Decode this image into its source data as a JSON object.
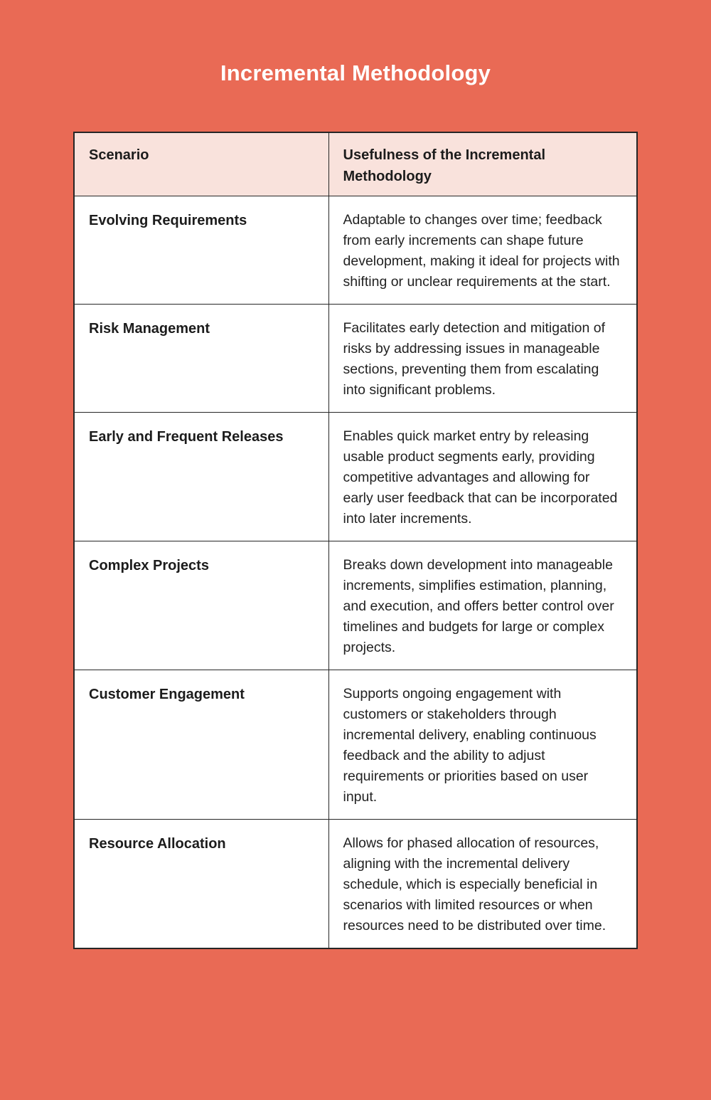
{
  "page": {
    "title": "Incremental Methodology",
    "background_color": "#e96a55",
    "header_bg_color": "#f9e2dc",
    "border_color": "#262626",
    "title_color": "#ffffff"
  },
  "table": {
    "columns": [
      "Scenario",
      "Usefulness of the Incremental Methodology"
    ],
    "rows": [
      {
        "scenario": "Evolving Requirements",
        "usefulness": "Adaptable to changes over time; feedback from early increments can shape future development, making it ideal for projects with shifting or unclear requirements at the start."
      },
      {
        "scenario": "Risk Management",
        "usefulness": "Facilitates early detection and mitigation of risks by addressing issues in manageable sections, preventing them from escalating into significant problems."
      },
      {
        "scenario": "Early and Frequent Releases",
        "usefulness": "Enables quick market entry by releasing usable product segments early, providing competitive advantages and allowing for early user feedback that can be incorporated into later increments."
      },
      {
        "scenario": "Complex Projects",
        "usefulness": "Breaks down development into manageable increments, simplifies estimation, planning, and execution, and offers better control over timelines and budgets for large or complex projects."
      },
      {
        "scenario": "Customer Engagement",
        "usefulness": "Supports ongoing engagement with customers or stakeholders through incremental delivery, enabling continuous feedback and the ability to adjust requirements or priorities based on user input."
      },
      {
        "scenario": "Resource Allocation",
        "usefulness": "Allows for phased allocation of resources, aligning with the incremental delivery schedule, which is especially beneficial in scenarios with limited resources or when resources need to be distributed over time."
      }
    ]
  }
}
